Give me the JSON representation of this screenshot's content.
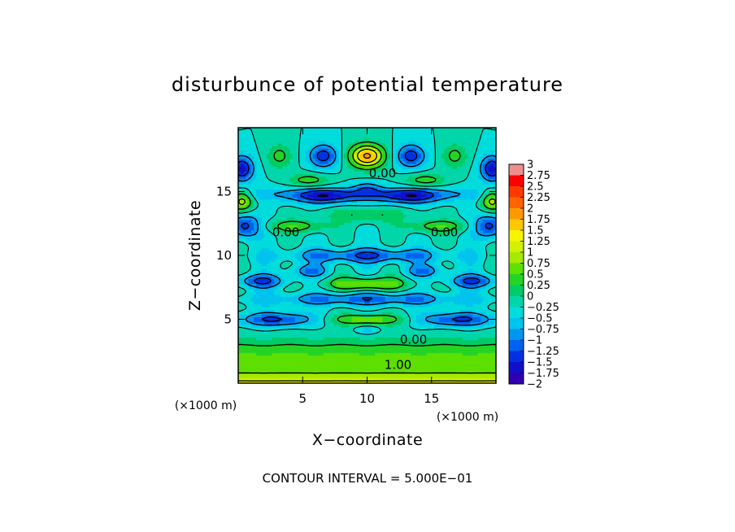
{
  "chart_data": {
    "type": "heatmap",
    "title": "disturbunce of potential temperature",
    "xlabel": "X−coordinate",
    "ylabel": "Z−coordinate",
    "x_unit": "(×1000 m)",
    "y_unit": "(×1000 m)",
    "xlim": [
      0,
      20
    ],
    "ylim": [
      0,
      20
    ],
    "x_ticks": [
      5,
      10,
      15
    ],
    "y_ticks": [
      5,
      10,
      15
    ],
    "x_tick_labels": [
      "5",
      "10",
      "15"
    ],
    "y_tick_labels": [
      "5",
      "10",
      "15"
    ],
    "colorbar": {
      "levels": [
        3,
        2.75,
        2.5,
        2.25,
        2,
        1.75,
        1.5,
        1.25,
        1,
        0.75,
        0.5,
        0.25,
        0,
        -0.25,
        -0.5,
        -0.75,
        -1,
        -1.25,
        -1.5,
        -1.75,
        -2
      ],
      "labels": [
        "3",
        "2.75",
        "2.5",
        "2.25",
        "2",
        "1.75",
        "1.5",
        "1.25",
        "1",
        "0.75",
        "0.5",
        "0.25",
        "0",
        "−0.25",
        "−0.5",
        "−0.75",
        "−1",
        "−1.25",
        "−1.5",
        "−1.75",
        "−2"
      ],
      "colors": [
        "#f08e8e",
        "#ff0000",
        "#ff3a00",
        "#ff6400",
        "#ff9a00",
        "#ffc800",
        "#f6f500",
        "#d3f000",
        "#a6ea00",
        "#5ddf00",
        "#24d424",
        "#00cc66",
        "#00d6aa",
        "#00dcdc",
        "#00c4ee",
        "#0096f0",
        "#0062f0",
        "#0030e0",
        "#1010c8",
        "#3000b0",
        "#6a00a6"
      ]
    },
    "contour_labels": [
      {
        "text": "0.00",
        "x": 11.2,
        "y": 16.1
      },
      {
        "text": "0.00",
        "x": 3.7,
        "y": 11.5
      },
      {
        "text": "0.00",
        "x": 16.0,
        "y": 11.5
      },
      {
        "text": "0.00",
        "x": 13.6,
        "y": 3.1
      },
      {
        "text": "1.00",
        "x": 12.4,
        "y": 1.1
      }
    ],
    "contour_interval_text": "CONTOUR INTERVAL = 5.000E−01"
  }
}
